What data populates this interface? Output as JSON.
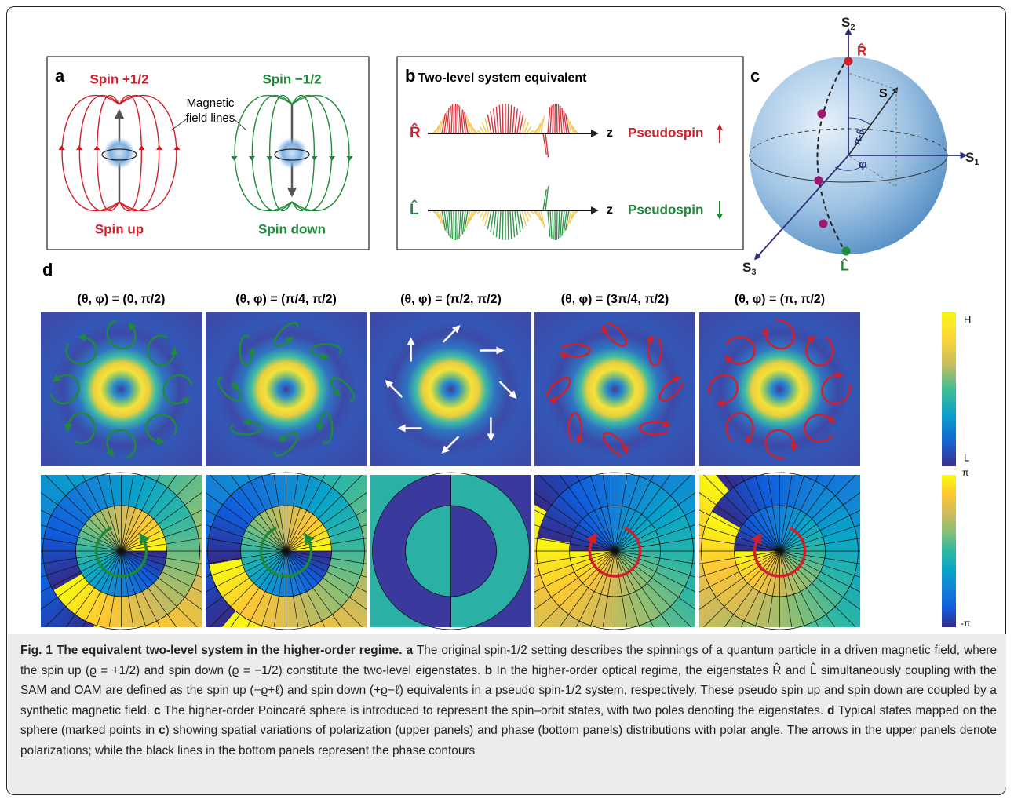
{
  "panel_a": {
    "label": "a",
    "spin_plus": "Spin +1/2",
    "spin_minus": "Spin −1/2",
    "field_label": [
      "Magnetic",
      "field lines"
    ],
    "spin_up": "Spin up",
    "spin_down": "Spin down"
  },
  "panel_b": {
    "label": "b",
    "title": "Two-level system equivalent",
    "rows": [
      {
        "state": "R̂",
        "axis": "z",
        "pseudospin": "Pseudospin"
      },
      {
        "state": "L̂",
        "axis": "z",
        "pseudospin": "Pseudospin"
      }
    ]
  },
  "panel_c": {
    "label": "c",
    "axes": [
      {
        "symbol": "S",
        "subscript": "2"
      },
      {
        "symbol": "S",
        "subscript": "1"
      },
      {
        "symbol": "S",
        "subscript": "3"
      }
    ],
    "vector": "S",
    "polar_angle": "π-θ",
    "azimuth": "φ",
    "north_pole": "R̂",
    "south_pole": "L̂"
  },
  "panel_d": {
    "label": "d",
    "titles": [
      "(θ, φ) = (0, π/2)",
      "(θ, φ) = (π/4, π/2)",
      "(θ, φ) = (π/2, π/2)",
      "(θ, φ) = (3π/4, π/2)",
      "(θ, φ) = (π, π/2)"
    ],
    "intensity_bar": {
      "high": "H",
      "low": "L"
    },
    "phase_bar": {
      "high": "π",
      "low": "-π"
    }
  },
  "caption": {
    "title": "Fig. 1 The equivalent two-level system in the higher-order regime.",
    "parts": [
      {
        "label": "a",
        "text": "The original spin-1/2 setting describes the spinnings of a quantum particle in a driven magnetic field, where the spin up (ϱ = +1/2) and spin down (ϱ = −1/2) constitute the two-level eigenstates."
      },
      {
        "label": "b",
        "text": "In the higher-order optical regime, the eigenstates R̂ and L̂ simultaneously coupling with the SAM and OAM are defined as the spin up (−ϱ+ℓ) and spin down (+ϱ−ℓ) equivalents in a pseudo spin-1/2 system, respectively. These pseudo spin up and spin down are coupled by a synthetic magnetic field."
      },
      {
        "label": "c",
        "text": "The higher-order Poincaré sphere is introduced to represent the spin–orbit states, with two poles denoting the eigenstates."
      },
      {
        "label": "d",
        "text": "Typical states mapped on the sphere (marked points in",
        "ref": "c",
        "text_after": ") showing spatial variations of polarization (upper panels) and phase (bottom panels) distributions with polar angle. The arrows in the upper panels denote polarizations; while the black lines in the bottom panels represent the phase contours"
      }
    ]
  }
}
